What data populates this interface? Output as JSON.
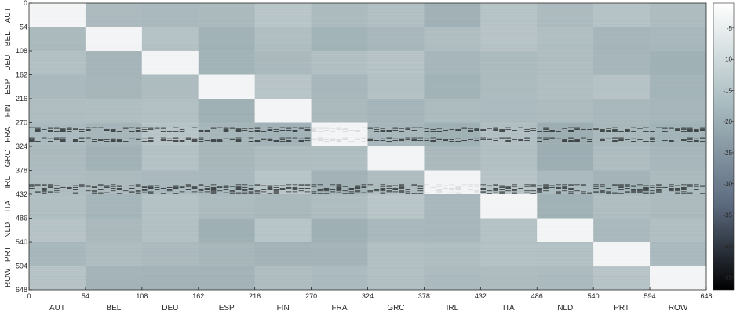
{
  "chart_data": {
    "type": "heatmap",
    "title": "",
    "xlabel": "",
    "ylabel": "",
    "size": 648,
    "block_size": 54,
    "ticks": [
      0,
      54,
      108,
      162,
      216,
      270,
      324,
      378,
      432,
      486,
      540,
      594,
      648
    ],
    "countries": [
      "AUT",
      "BEL",
      "DEU",
      "ESP",
      "FIN",
      "FRA",
      "GRC",
      "IRL",
      "ITA",
      "NLD",
      "PRT",
      "ROW"
    ],
    "colorbar": {
      "ticks": [
        -5,
        -10,
        -15,
        -20,
        -25,
        -30,
        -35,
        -40,
        -45
      ],
      "range": [
        -47,
        -1
      ],
      "colors": {
        "high": "#ffffff",
        "mid": "#8fa3a8",
        "low": "#000000"
      }
    },
    "cell_levels": {
      "diagonal_block": -3,
      "off_diagonal_typical": -14,
      "off_diagonal_dark": -19,
      "sparse_row_band": -46
    },
    "dark_row_bands": [
      {
        "country": "FRA",
        "rows": [
          281,
          290
        ]
      },
      {
        "country": "FRA",
        "rows": [
          304,
          313
        ]
      },
      {
        "country": "IRL",
        "rows": [
          410,
          430
        ]
      }
    ]
  }
}
